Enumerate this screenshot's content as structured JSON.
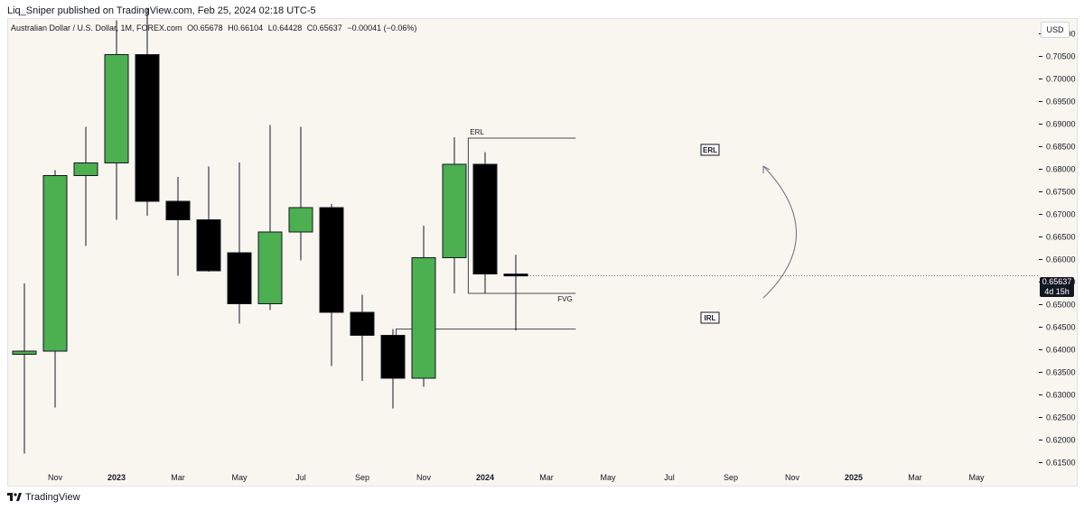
{
  "publisher_line": "Liq_Sniper published on TradingView.com, Feb 25, 2024 02:18 UTC-5",
  "legend": {
    "symbol": "Australian Dollar / U.S. Dollar, 1M, FOREX.com",
    "open": "O0.65678",
    "high": "H0.66104",
    "low": "L0.64428",
    "close": "C0.65637",
    "change": "−0.00041 (−0.06%)"
  },
  "currency": "USD",
  "last_price": "0.65637",
  "countdown": "4d 15h",
  "brand": "TradingView",
  "chart_data": {
    "type": "candlestick",
    "interval": "1M",
    "bullish_color": "#4caf50",
    "bearish_color": "#000000",
    "background": "#f9f6f0",
    "ylim": [
      0.6135,
      0.7135
    ],
    "y_ticks": [
      "0.61500",
      "0.62000",
      "0.62500",
      "0.63000",
      "0.63500",
      "0.64000",
      "0.64500",
      "0.65000",
      "0.65500",
      "0.66000",
      "0.66500",
      "0.67000",
      "0.67500",
      "0.68000",
      "0.68500",
      "0.69000",
      "0.69500",
      "0.70000",
      "0.70500",
      "0.71000"
    ],
    "x_ticks": [
      {
        "label": "Nov",
        "index": 1,
        "bold": false
      },
      {
        "label": "2023",
        "index": 3,
        "bold": true
      },
      {
        "label": "Mar",
        "index": 5,
        "bold": false
      },
      {
        "label": "May",
        "index": 7,
        "bold": false
      },
      {
        "label": "Jul",
        "index": 9,
        "bold": false
      },
      {
        "label": "Sep",
        "index": 11,
        "bold": false
      },
      {
        "label": "Nov",
        "index": 13,
        "bold": false
      },
      {
        "label": "2024",
        "index": 15,
        "bold": true
      },
      {
        "label": "Mar",
        "index": 17,
        "bold": false
      },
      {
        "label": "May",
        "index": 19,
        "bold": false
      },
      {
        "label": "Jul",
        "index": 21,
        "bold": false
      },
      {
        "label": "Sep",
        "index": 23,
        "bold": false
      },
      {
        "label": "Nov",
        "index": 25,
        "bold": false
      },
      {
        "label": "2025",
        "index": 27,
        "bold": true
      },
      {
        "label": "Mar",
        "index": 29,
        "bold": false
      },
      {
        "label": "May",
        "index": 31,
        "bold": false
      }
    ],
    "candles": [
      {
        "date": "Oct 2022",
        "open": 0.639,
        "high": 0.6547,
        "low": 0.617,
        "close": 0.6397
      },
      {
        "date": "Nov 2022",
        "open": 0.6397,
        "high": 0.6798,
        "low": 0.6272,
        "close": 0.6786
      },
      {
        "date": "Dec 2022",
        "open": 0.6786,
        "high": 0.6894,
        "low": 0.663,
        "close": 0.6814
      },
      {
        "date": "Jan 2023",
        "open": 0.6814,
        "high": 0.713,
        "low": 0.6688,
        "close": 0.7054
      },
      {
        "date": "Feb 2023",
        "open": 0.7054,
        "high": 0.7158,
        "low": 0.6697,
        "close": 0.6729
      },
      {
        "date": "Mar 2023",
        "open": 0.6729,
        "high": 0.6783,
        "low": 0.6564,
        "close": 0.6688
      },
      {
        "date": "Apr 2023",
        "open": 0.6688,
        "high": 0.6806,
        "low": 0.6573,
        "close": 0.6575
      },
      {
        "date": "May 2023",
        "open": 0.6615,
        "high": 0.6815,
        "low": 0.6458,
        "close": 0.6502
      },
      {
        "date": "Jun 2023",
        "open": 0.6502,
        "high": 0.6898,
        "low": 0.6488,
        "close": 0.6661
      },
      {
        "date": "Jul 2023",
        "open": 0.6661,
        "high": 0.6894,
        "low": 0.6598,
        "close": 0.6715
      },
      {
        "date": "Aug 2023",
        "open": 0.6715,
        "high": 0.6723,
        "low": 0.6364,
        "close": 0.6483
      },
      {
        "date": "Sep 2023",
        "open": 0.6483,
        "high": 0.6522,
        "low": 0.6331,
        "close": 0.6432
      },
      {
        "date": "Oct 2023",
        "open": 0.6432,
        "high": 0.6446,
        "low": 0.627,
        "close": 0.6337
      },
      {
        "date": "Nov 2023",
        "open": 0.6337,
        "high": 0.6675,
        "low": 0.6318,
        "close": 0.6604
      },
      {
        "date": "Dec 2023",
        "open": 0.6604,
        "high": 0.6871,
        "low": 0.6525,
        "close": 0.6811
      },
      {
        "date": "Jan 2024",
        "open": 0.6811,
        "high": 0.6838,
        "low": 0.6525,
        "close": 0.6568
      },
      {
        "date": "Feb 2024",
        "open": 0.65678,
        "high": 0.66104,
        "low": 0.64428,
        "close": 0.65637
      }
    ],
    "annotations": {
      "erl": {
        "label": "ERL",
        "price": 0.6869,
        "from_index": 14.45,
        "to_index": 17.95
      },
      "fvg": {
        "label": "FVG",
        "price_top": 0.6525,
        "price_bottom": 0.6446,
        "from_index": 12.1,
        "to_index": 17.95
      },
      "erl_box": {
        "label": "ERL"
      },
      "irl_box": {
        "label": "IRL"
      }
    },
    "last_price": 0.65637
  }
}
